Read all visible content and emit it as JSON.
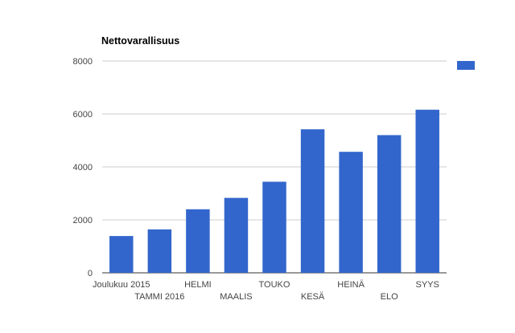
{
  "chart_data": {
    "type": "bar",
    "title": "Nettovarallisuus",
    "xlabel": "",
    "ylabel": "",
    "categories": [
      "Joulukuu 2015",
      "TAMMI 2016",
      "HELMI",
      "MAALIS",
      "TOUKO",
      "KESÄ",
      "HEINÄ",
      "ELO",
      "SYYS"
    ],
    "series": [
      {
        "values": [
          1390,
          1640,
          2400,
          2830,
          3440,
          5420,
          4570,
          5200,
          6160
        ]
      }
    ],
    "ylim": [
      0,
      8000
    ],
    "yticks": [
      0,
      2000,
      4000,
      6000,
      8000
    ],
    "grid": true,
    "legend": "right",
    "colors": {
      "bar": "#3366cc",
      "grid": "#cccccc",
      "axis": "#333333",
      "text": "#444444"
    }
  }
}
